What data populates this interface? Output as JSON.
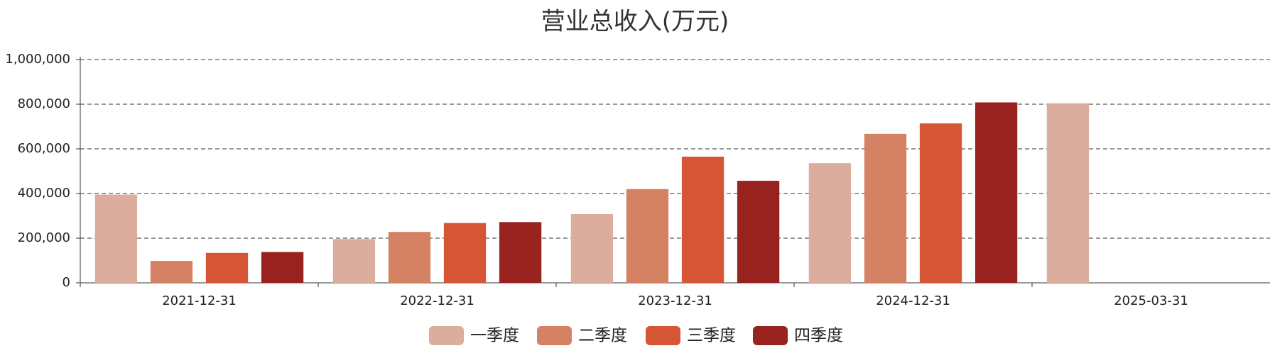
{
  "chart_data": {
    "type": "bar",
    "title": "营业总收入(万元)",
    "categories": [
      "2021-12-31",
      "2022-12-31",
      "2023-12-31",
      "2024-12-31",
      "2025-03-31"
    ],
    "series": [
      {
        "name": "一季度",
        "color": "#dbad9c",
        "values": [
          395000,
          196000,
          308000,
          536000,
          804000
        ]
      },
      {
        "name": "二季度",
        "color": "#d58264",
        "values": [
          98000,
          228000,
          420000,
          667000,
          null
        ]
      },
      {
        "name": "三季度",
        "color": "#d65535",
        "values": [
          134000,
          268000,
          565000,
          714000,
          null
        ]
      },
      {
        "name": "四季度",
        "color": "#98231e",
        "values": [
          138000,
          272000,
          457000,
          808000,
          null
        ]
      }
    ],
    "ylim": [
      0,
      1000000
    ],
    "yticks": [
      0,
      {
        "value": 200000,
        "label": "200,000"
      },
      {
        "value": 400000,
        "label": "400,000"
      },
      {
        "value": 600000,
        "label": "600,000"
      },
      {
        "value": 800000,
        "label": "800,000"
      },
      {
        "value": 1000000,
        "label": "1,000,000"
      }
    ],
    "grid": true,
    "legend": "bottom"
  }
}
